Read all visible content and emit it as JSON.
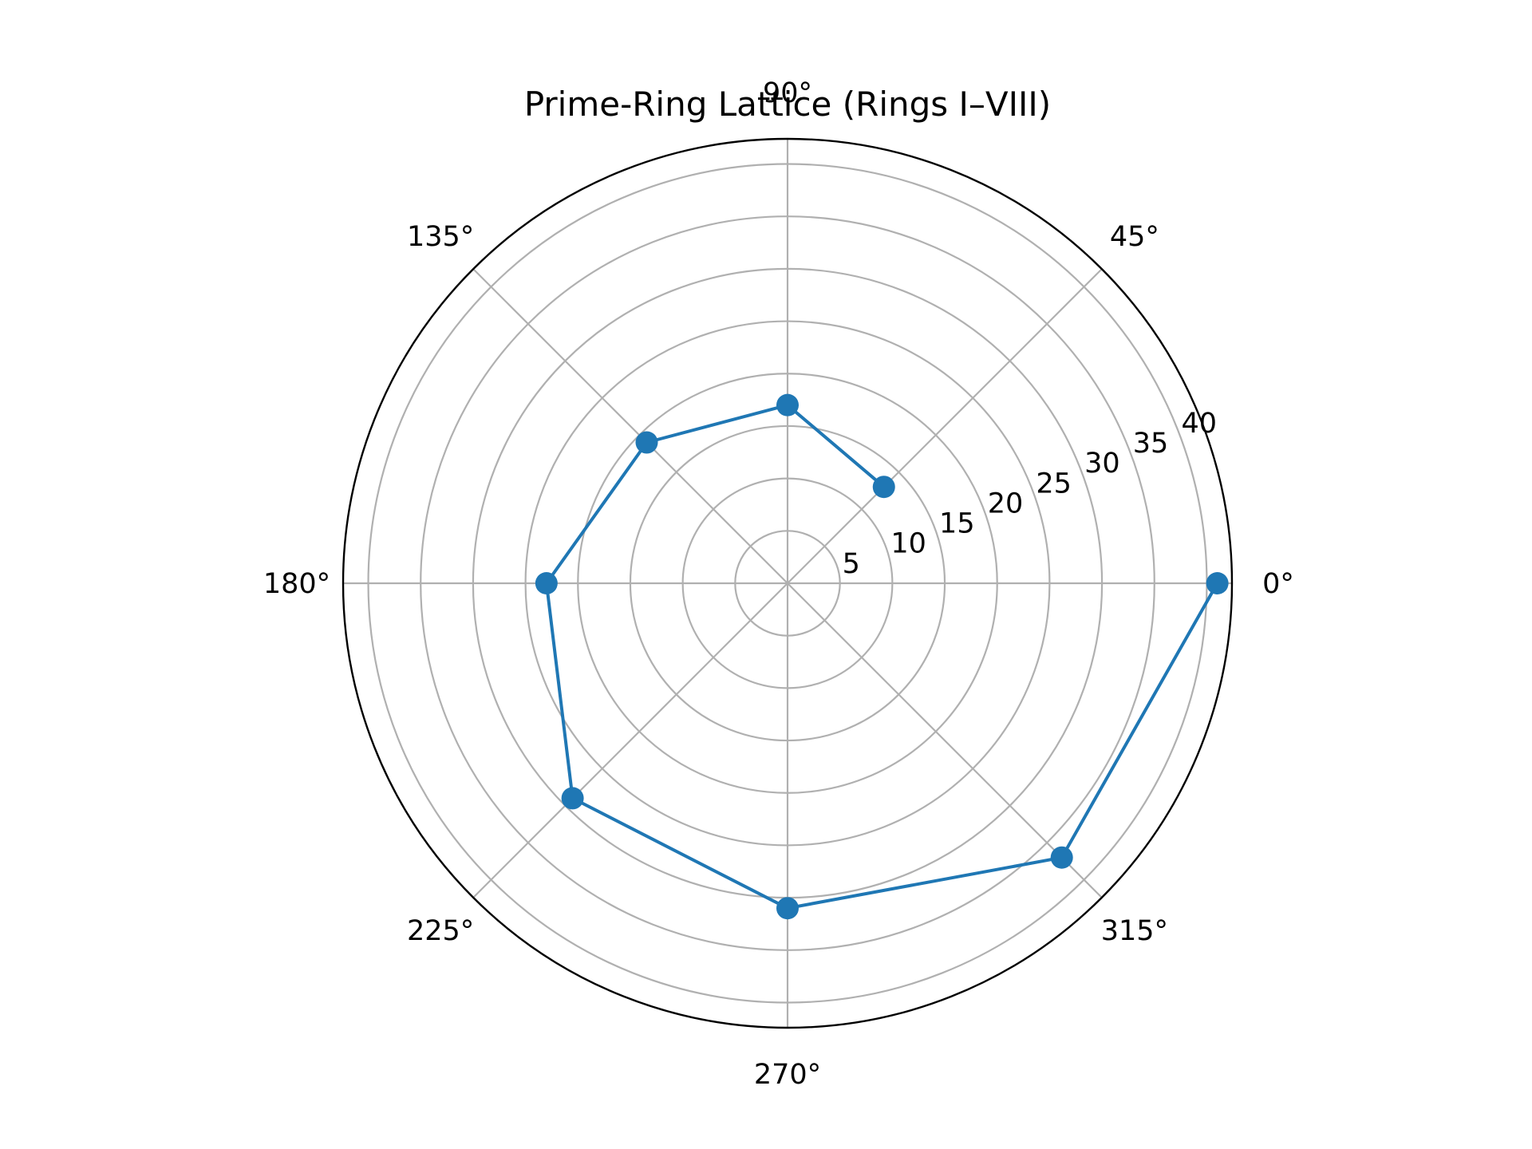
{
  "chart_data": {
    "type": "line",
    "projection": "polar",
    "title": "Prime-Ring Lattice (Rings I–VIII)",
    "theta_degrees": [
      0,
      45,
      90,
      135,
      180,
      225,
      270,
      315
    ],
    "series": [
      {
        "name": "Rings I–VIII",
        "theta": [
          45,
          90,
          135,
          180,
          225,
          270,
          315,
          0
        ],
        "r": [
          13,
          17,
          19,
          23,
          29,
          31,
          37,
          41
        ],
        "color": "#1f77b4",
        "marker": "circle"
      }
    ],
    "r_ticks": [
      5,
      10,
      15,
      20,
      25,
      30,
      35,
      40
    ],
    "r_tick_labels": [
      "5",
      "10",
      "15",
      "20",
      "25",
      "30",
      "35",
      "40"
    ],
    "theta_tick_labels": [
      "0°",
      "45°",
      "90°",
      "135°",
      "180°",
      "225°",
      "270°",
      "315°"
    ],
    "rlim": [
      0,
      42.4
    ],
    "r_label_angle_deg": 22.5,
    "grid": true,
    "colors": {
      "series": "#1f77b4",
      "grid": "#b0b0b0",
      "frame": "#000000"
    }
  }
}
